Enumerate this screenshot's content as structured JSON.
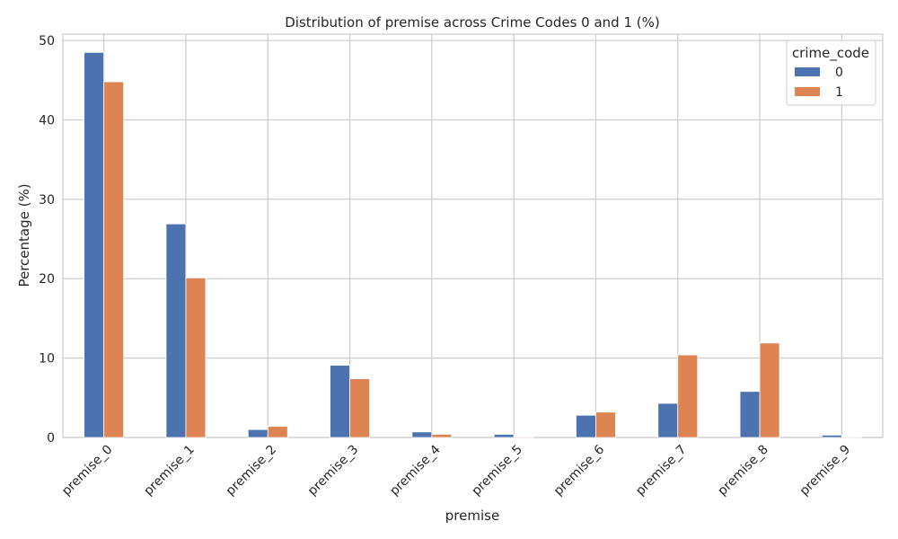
{
  "chart_data": {
    "type": "bar",
    "title": "Distribution of premise across Crime Codes 0 and 1 (%)",
    "xlabel": "premise",
    "ylabel": "Percentage (%)",
    "categories": [
      "premise_0",
      "premise_1",
      "premise_2",
      "premise_3",
      "premise_4",
      "premise_5",
      "premise_6",
      "premise_7",
      "premise_8",
      "premise_9"
    ],
    "series": [
      {
        "name": "0",
        "color": "#4c72b0",
        "values": [
          48.5,
          26.9,
          1.0,
          9.1,
          0.7,
          0.4,
          2.8,
          4.3,
          5.8,
          0.3
        ]
      },
      {
        "name": "1",
        "color": "#dd8452",
        "values": [
          44.8,
          20.1,
          1.4,
          7.4,
          0.4,
          0.1,
          3.2,
          10.4,
          11.9,
          0.1
        ]
      }
    ],
    "ylim": [
      0,
      50.8
    ],
    "yticks": [
      0,
      10,
      20,
      30,
      40,
      50
    ],
    "grid": true,
    "legend": {
      "title": "crime_code",
      "placement": "top-right"
    }
  }
}
